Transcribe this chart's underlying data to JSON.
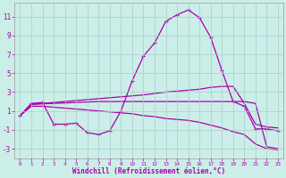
{
  "xlabel": "Windchill (Refroidissement éolien,°C)",
  "bg_color": "#cceee8",
  "line_color": "#aa00aa",
  "grid_color": "#aacccc",
  "xlim": [
    -0.5,
    23.5
  ],
  "ylim": [
    -4,
    12.5
  ],
  "yticks": [
    -3,
    -1,
    1,
    3,
    5,
    7,
    9,
    11
  ],
  "xticks": [
    0,
    1,
    2,
    3,
    4,
    5,
    6,
    7,
    8,
    9,
    10,
    11,
    12,
    13,
    14,
    15,
    16,
    17,
    18,
    19,
    20,
    21,
    22,
    23
  ],
  "curve1_x": [
    0,
    1,
    2,
    3,
    4,
    5,
    6,
    7,
    8,
    9,
    10,
    11,
    12,
    13,
    14,
    15,
    16,
    17,
    18,
    19,
    20,
    21,
    22,
    23
  ],
  "curve1_y": [
    0.5,
    1.8,
    1.9,
    -0.4,
    -0.4,
    -0.3,
    -1.3,
    -1.5,
    -1.1,
    1.0,
    4.2,
    6.8,
    8.2,
    10.5,
    11.2,
    11.7,
    10.9,
    8.8,
    5.3,
    2.0,
    1.5,
    -0.9,
    -0.9,
    -1.1
  ],
  "curve2_x": [
    0,
    1,
    2,
    3,
    4,
    5,
    6,
    7,
    8,
    9,
    10,
    11,
    12,
    13,
    14,
    15,
    16,
    17,
    18,
    19,
    20,
    21,
    22,
    23
  ],
  "curve2_y": [
    0.5,
    1.7,
    1.8,
    1.9,
    2.0,
    2.1,
    2.2,
    2.3,
    2.4,
    2.5,
    2.6,
    2.7,
    2.85,
    3.0,
    3.1,
    3.2,
    3.3,
    3.5,
    3.6,
    3.6,
    1.8,
    -0.4,
    -0.7,
    -0.8
  ],
  "curve3_x": [
    0,
    1,
    2,
    3,
    4,
    5,
    6,
    7,
    8,
    9,
    10,
    11,
    12,
    13,
    14,
    15,
    16,
    17,
    18,
    19,
    20,
    21,
    22,
    23
  ],
  "curve3_y": [
    0.5,
    1.7,
    1.75,
    1.8,
    1.85,
    1.9,
    1.95,
    2.0,
    2.0,
    2.0,
    2.0,
    2.0,
    2.0,
    2.0,
    2.0,
    2.0,
    2.0,
    2.0,
    2.0,
    2.0,
    2.0,
    1.8,
    -2.8,
    -3.0
  ],
  "curve4_x": [
    0,
    1,
    2,
    3,
    4,
    5,
    6,
    7,
    8,
    9,
    10,
    11,
    12,
    13,
    14,
    15,
    16,
    17,
    18,
    19,
    20,
    21,
    22,
    23
  ],
  "curve4_y": [
    0.5,
    1.5,
    1.5,
    1.4,
    1.3,
    1.2,
    1.1,
    1.0,
    0.9,
    0.8,
    0.7,
    0.5,
    0.4,
    0.2,
    0.1,
    0.0,
    -0.2,
    -0.5,
    -0.8,
    -1.2,
    -1.5,
    -2.5,
    -3.0,
    -3.1
  ],
  "marker": "+",
  "markersize": 3.5,
  "linewidth": 0.9
}
